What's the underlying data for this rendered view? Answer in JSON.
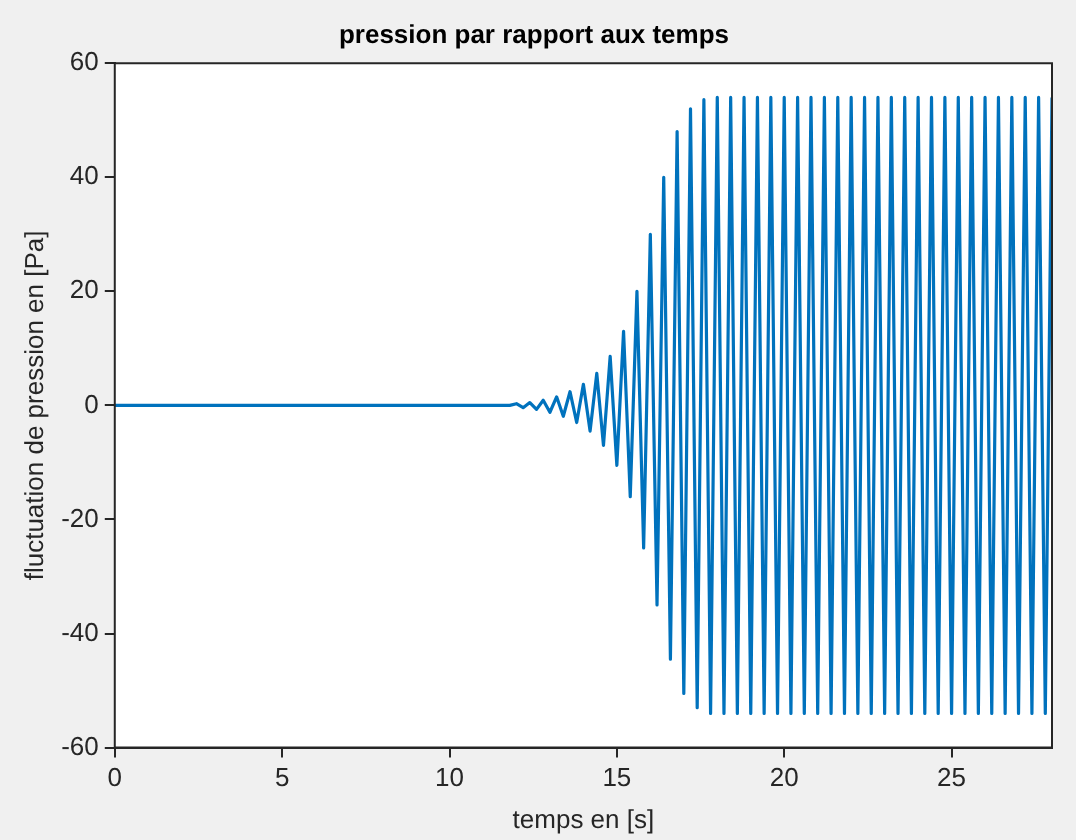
{
  "chart_data": {
    "type": "line",
    "title": "pression par rapport aux temps",
    "xlabel": "temps en [s]",
    "ylabel": "fluctuation de pression en [Pa]",
    "x": [
      0,
      11.8,
      12.0,
      12.2,
      12.4,
      12.6,
      12.8,
      13.0,
      13.2,
      13.4,
      13.6,
      13.8,
      14.0,
      14.2,
      14.4,
      14.6,
      14.8,
      15.0,
      15.2,
      15.4,
      15.6,
      15.8,
      16.0,
      16.2,
      16.4,
      16.6,
      16.8,
      17.0,
      17.2,
      17.4,
      17.6,
      17.8,
      18.0,
      18.2,
      18.4,
      18.6,
      18.8,
      19.0,
      19.2,
      19.4,
      19.6,
      19.8,
      20.0,
      20.2,
      20.4,
      20.6,
      20.8,
      21.0,
      21.2,
      21.4,
      21.6,
      21.8,
      22.0,
      22.2,
      22.4,
      22.6,
      22.8,
      23.0,
      23.2,
      23.4,
      23.6,
      23.8,
      24.0,
      24.2,
      24.4,
      24.6,
      24.8,
      25.0,
      25.2,
      25.4,
      25.6,
      25.8,
      26.0,
      26.2,
      26.4,
      26.6,
      26.8,
      27.0,
      27.2,
      27.4,
      27.6,
      27.8,
      28.0
    ],
    "series": [
      {
        "color": "#0072bd",
        "values": [
          0,
          0,
          0.3,
          -0.4,
          0.5,
          -0.7,
          0.9,
          -1.2,
          1.5,
          -1.9,
          2.4,
          -3,
          3.7,
          -4.5,
          5.6,
          -7,
          8.6,
          -10.5,
          13,
          -16,
          20,
          -25,
          30,
          -35,
          40,
          -44.5,
          48,
          -50.5,
          52,
          -53,
          53.6,
          -54,
          54,
          -54,
          54,
          -54,
          54,
          -54,
          54,
          -54,
          54,
          -54,
          54,
          -54,
          54,
          -54,
          54,
          -54,
          54,
          -54,
          54,
          -54,
          54,
          -54,
          54,
          -54,
          54,
          -54,
          54,
          -54,
          54,
          -54,
          54,
          -54,
          54,
          -54,
          54,
          -54,
          54,
          -54,
          54,
          -54,
          54,
          -54,
          54,
          -54,
          54,
          -54,
          54,
          -54,
          54,
          -54,
          54
        ]
      }
    ],
    "xlim": [
      0,
      28
    ],
    "xticks": [
      0,
      5,
      10,
      15,
      20,
      25
    ],
    "ylim": [
      -60,
      60
    ],
    "yticks": [
      -60,
      -40,
      -20,
      0,
      20,
      40,
      60
    ],
    "grid": false,
    "legend": false,
    "marker": "none",
    "line_style": "solid"
  }
}
